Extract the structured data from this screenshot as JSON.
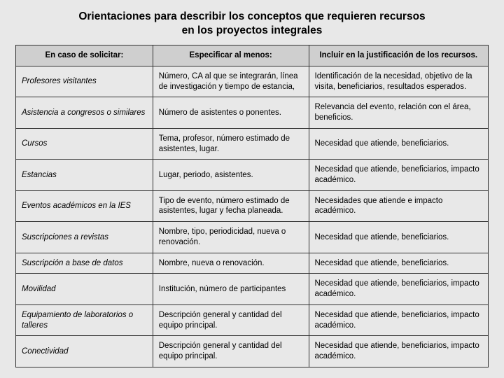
{
  "title_line1": "Orientaciones para describir los conceptos que requieren recursos",
  "title_line2": "en los proyectos integrales",
  "table": {
    "columns": [
      "En caso de solicitar:",
      "Especificar al menos:",
      "Incluir en la justificación de los recursos."
    ],
    "rows": [
      [
        "Profesores visitantes",
        "Número, CA al que se integrarán, línea de investigación y tiempo de estancia,",
        "Identificación de la necesidad, objetivo de la visita, beneficiarios, resultados esperados."
      ],
      [
        "Asistencia a congresos o similares",
        "Número de asistentes o ponentes.",
        "Relevancia del evento, relación con el área, beneficios."
      ],
      [
        "Cursos",
        "Tema, profesor, número estimado de asistentes, lugar.",
        "Necesidad que atiende, beneficiarios."
      ],
      [
        "Estancias",
        "Lugar, periodo, asistentes.",
        "Necesidad que atiende, beneficiarios, impacto académico."
      ],
      [
        "Eventos académicos en la IES",
        "Tipo de evento, número estimado de asistentes, lugar y fecha planeada.",
        "Necesidades que atiende e impacto académico."
      ],
      [
        "Suscripciones a revistas",
        "Nombre, tipo, periodicidad, nueva o renovación.",
        "Necesidad que atiende, beneficiarios."
      ],
      [
        "Suscripción a base de datos",
        "Nombre, nueva o renovación.",
        "Necesidad que atiende, beneficiarios."
      ],
      [
        "Movilidad",
        "Institución, número de participantes",
        "Necesidad que atiende, beneficiarios, impacto académico."
      ],
      [
        "Equipamiento de laboratorios o talleres",
        "Descripción general y cantidad del equipo principal.",
        "Necesidad que atiende, beneficiarios, impacto académico."
      ],
      [
        "Conectividad",
        "Descripción general y cantidad del equipo principal.",
        "Necesidad que atiende, beneficiarios, impacto académico."
      ]
    ]
  }
}
